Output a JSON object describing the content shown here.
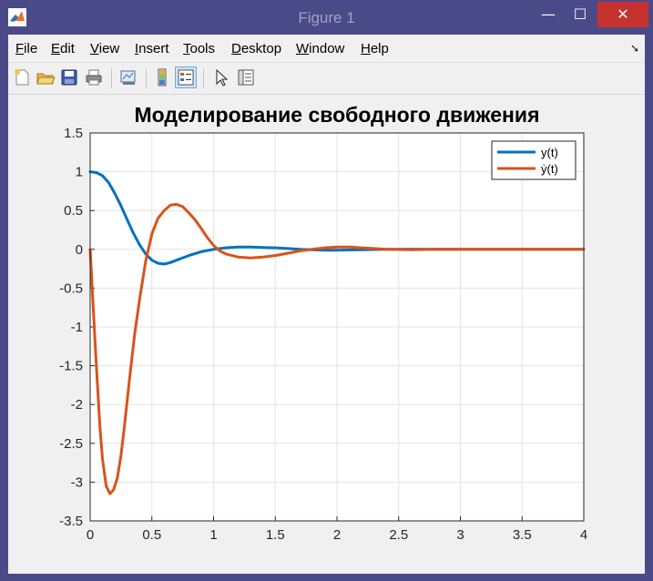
{
  "window": {
    "title": "Figure 1",
    "minimize": "—",
    "maximize": "☐",
    "close": "✕"
  },
  "menu": [
    {
      "key": "F",
      "rest": "ile"
    },
    {
      "key": "E",
      "rest": "dit"
    },
    {
      "key": "V",
      "rest": "iew"
    },
    {
      "key": "I",
      "rest": "nsert"
    },
    {
      "key": "T",
      "rest": "ools"
    },
    {
      "key": "D",
      "rest": "esktop"
    },
    {
      "key": "W",
      "rest": "indow"
    },
    {
      "key": "H",
      "rest": "elp"
    }
  ],
  "toolbar": [
    "new-figure-icon",
    "open-file-icon",
    "save-icon",
    "print-icon",
    "link-plot-icon",
    "insert-colorbar-icon",
    "insert-legend-icon",
    "edit-plot-arrow-icon",
    "property-inspector-icon"
  ],
  "chart_data": {
    "type": "line",
    "title": "Моделирование свободного движения",
    "xlim": [
      0,
      4
    ],
    "ylim": [
      -3.5,
      1.5
    ],
    "xticks": [
      "0",
      "0.5",
      "1",
      "1.5",
      "2",
      "2.5",
      "3",
      "3.5",
      "4"
    ],
    "yticks": [
      "1.5",
      "1",
      "0.5",
      "0",
      "-0.5",
      "-1",
      "-1.5",
      "-2",
      "-2.5",
      "-3",
      "-3.5"
    ],
    "grid": true,
    "legend_position": "top-right",
    "series": [
      {
        "name": "y(t)",
        "color": "#0072bd",
        "x": [
          0,
          0.05,
          0.1,
          0.15,
          0.2,
          0.25,
          0.3,
          0.35,
          0.4,
          0.45,
          0.5,
          0.55,
          0.6,
          0.65,
          0.7,
          0.8,
          0.9,
          1.0,
          1.1,
          1.2,
          1.3,
          1.4,
          1.5,
          1.6,
          1.7,
          1.8,
          1.9,
          2.0,
          2.2,
          2.4,
          2.6,
          2.8,
          3.0,
          3.5,
          4.0
        ],
        "y": [
          1.0,
          0.99,
          0.95,
          0.86,
          0.72,
          0.56,
          0.38,
          0.21,
          0.06,
          -0.06,
          -0.14,
          -0.18,
          -0.19,
          -0.17,
          -0.14,
          -0.08,
          -0.03,
          0.0,
          0.02,
          0.03,
          0.03,
          0.025,
          0.02,
          0.01,
          0.0,
          -0.005,
          -0.01,
          -0.01,
          -0.005,
          0.0,
          0.002,
          0.001,
          0.0,
          0.0,
          0.0
        ]
      },
      {
        "name": "ẏ(t)",
        "color": "#d95319",
        "x": [
          0,
          0.02,
          0.05,
          0.08,
          0.1,
          0.13,
          0.16,
          0.19,
          0.22,
          0.25,
          0.28,
          0.32,
          0.36,
          0.4,
          0.45,
          0.5,
          0.55,
          0.6,
          0.65,
          0.7,
          0.75,
          0.8,
          0.85,
          0.9,
          0.95,
          1.0,
          1.05,
          1.1,
          1.2,
          1.3,
          1.4,
          1.5,
          1.6,
          1.7,
          1.8,
          1.9,
          2.0,
          2.1,
          2.2,
          2.3,
          2.4,
          2.6,
          2.8,
          3.0,
          3.5,
          4.0
        ],
        "y": [
          0.0,
          -0.6,
          -1.5,
          -2.3,
          -2.7,
          -3.05,
          -3.15,
          -3.1,
          -2.95,
          -2.65,
          -2.25,
          -1.65,
          -1.1,
          -0.65,
          -0.15,
          0.2,
          0.4,
          0.5,
          0.57,
          0.58,
          0.55,
          0.47,
          0.38,
          0.27,
          0.15,
          0.05,
          -0.02,
          -0.06,
          -0.1,
          -0.11,
          -0.1,
          -0.08,
          -0.05,
          -0.02,
          0.0,
          0.02,
          0.03,
          0.03,
          0.02,
          0.01,
          0.0,
          -0.005,
          0.0,
          0.0,
          0.0,
          0.0
        ]
      }
    ]
  }
}
